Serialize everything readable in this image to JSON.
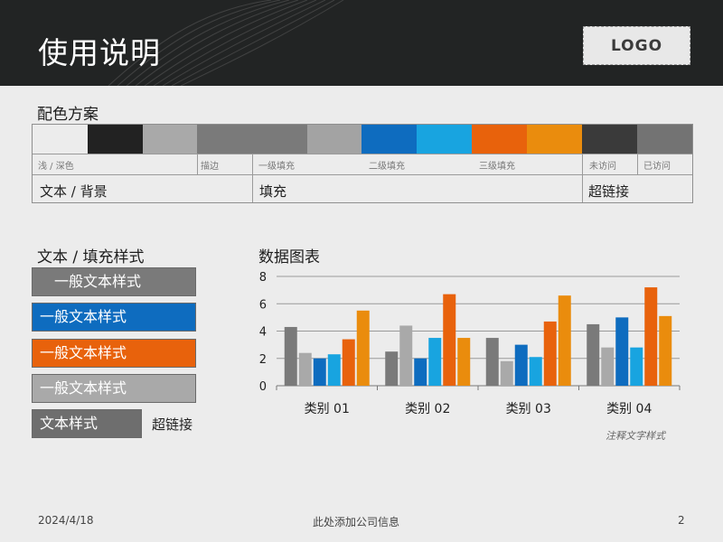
{
  "header": {
    "title": "使用说明",
    "logo": "LOGO"
  },
  "palette": {
    "heading": "配色方案",
    "colors": [
      "#ececec",
      "#222222",
      "#a9a9a9",
      "#7a7a7a",
      "#7a7a7a",
      "#a3a3a3",
      "#0e6cbf",
      "#18a4e0",
      "#e8620c",
      "#ea8c0d",
      "#3a3a3a",
      "#737373"
    ],
    "labels": [
      "浅 / 深色",
      "描边",
      "一级填充",
      "二级填充",
      "三级填充",
      "未访问",
      "已访问"
    ],
    "groups": [
      "文本 / 背景",
      "填充",
      "超链接"
    ]
  },
  "text_styles": {
    "heading": "文本 / 填充样式",
    "items": [
      {
        "label": "一般文本样式",
        "bg": "#7a7a7a"
      },
      {
        "label": "一般文本样式",
        "bg": "#0e6cbf"
      },
      {
        "label": "一般文本样式",
        "bg": "#e8620c"
      },
      {
        "label": "一般文本样式",
        "bg": "#a9a9a9"
      }
    ],
    "text_style": "文本样式",
    "hyperlink": "超链接"
  },
  "chart_section": {
    "heading": "数据图表",
    "note": "注释文字样式"
  },
  "chart_data": {
    "type": "bar",
    "categories": [
      "类别 01",
      "类别 02",
      "类别 03",
      "类别 04"
    ],
    "series": [
      {
        "values": [
          4.3,
          2.5,
          3.5,
          4.5
        ],
        "color": "#7a7a7a"
      },
      {
        "values": [
          2.4,
          4.4,
          1.8,
          2.8
        ],
        "color": "#a9a9a9"
      },
      {
        "values": [
          2.0,
          2.0,
          3.0,
          5.0
        ],
        "color": "#0e6cbf"
      },
      {
        "values": [
          2.3,
          3.5,
          2.1,
          2.8
        ],
        "color": "#18a4e0"
      },
      {
        "values": [
          3.4,
          6.7,
          4.7,
          7.2
        ],
        "color": "#e8620c"
      },
      {
        "values": [
          5.5,
          3.5,
          6.6,
          5.1
        ],
        "color": "#ea8c0d"
      }
    ],
    "yticks": [
      0,
      2,
      4,
      6,
      8
    ],
    "ylim": [
      0,
      8
    ],
    "grid": true
  },
  "footer": {
    "date": "2024/4/18",
    "company": "此处添加公司信息",
    "page": "2"
  }
}
